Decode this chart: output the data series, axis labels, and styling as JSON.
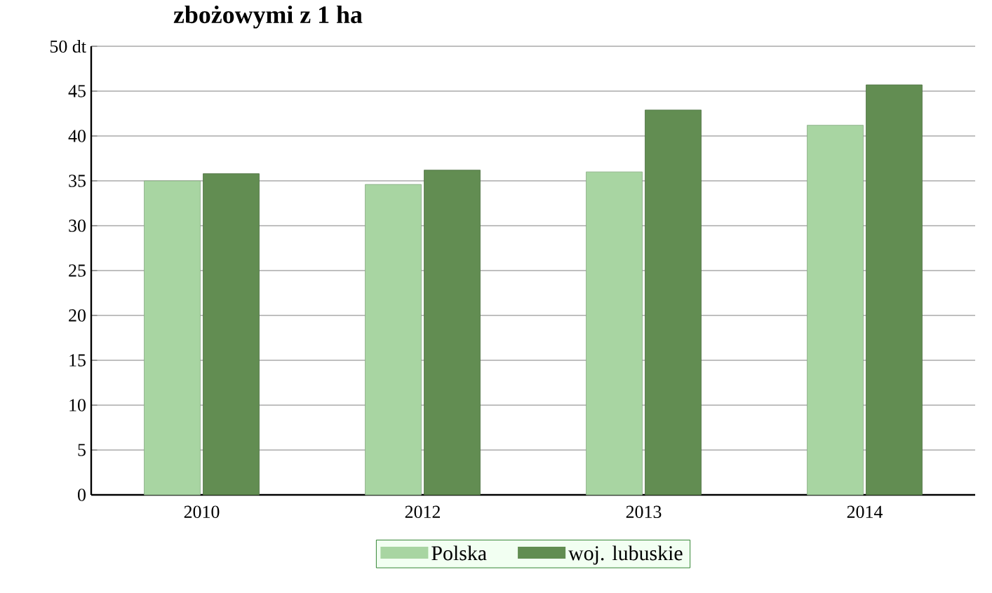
{
  "chart_data": {
    "type": "bar",
    "title": "zbożowymi z 1 ha",
    "categories": [
      "2010",
      "2012",
      "2013",
      "2014"
    ],
    "series": [
      {
        "name": "Polska",
        "color": "#a8d5a2",
        "values": [
          35.0,
          34.6,
          36.0,
          41.2
        ]
      },
      {
        "name": "woj. lubuskie",
        "color": "#628d52",
        "values": [
          35.8,
          36.2,
          42.9,
          45.7
        ]
      }
    ],
    "ylim": [
      0,
      50
    ],
    "yticks": [
      0,
      5,
      10,
      15,
      20,
      25,
      30,
      35,
      40,
      45,
      {
        "value": 50,
        "label": "50 dt"
      }
    ],
    "grid": "y",
    "legend": "bottom"
  }
}
